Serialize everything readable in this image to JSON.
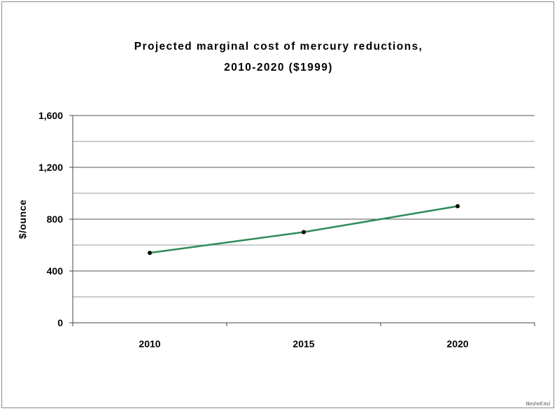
{
  "chart_data": {
    "type": "line",
    "title_line1": "Projected marginal cost of mercury reductions,",
    "title_line2": "2010-2020 ($1999)",
    "xlabel": "",
    "ylabel": "$/ounce",
    "categories": [
      "2010",
      "2015",
      "2020"
    ],
    "series": [
      {
        "values": [
          540,
          700,
          900
        ],
        "color": "#2e8b57"
      }
    ],
    "ylim": [
      0,
      1600
    ],
    "yticks": [
      0,
      400,
      800,
      1200,
      1600
    ],
    "yticklabels": [
      "0",
      "400",
      "800",
      "1,200",
      "1,600"
    ],
    "minor_gridlines": [
      200,
      600,
      1000,
      1400
    ],
    "grid": true,
    "legend": "none"
  },
  "footnote": "fileshelf.ttsl"
}
